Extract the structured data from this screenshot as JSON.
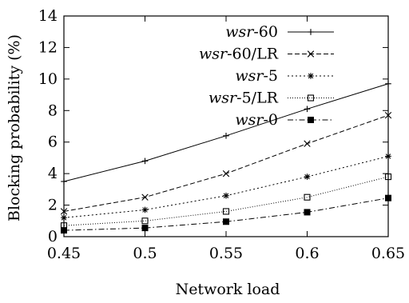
{
  "chart_data": {
    "type": "line",
    "title": "",
    "xlabel": "Network load",
    "ylabel": "Blocking probability (%)",
    "xlim": [
      0.45,
      0.65
    ],
    "ylim": [
      0,
      14
    ],
    "xticks": [
      0.45,
      0.5,
      0.55,
      0.6,
      0.65
    ],
    "xtick_labels": [
      "0.45",
      "0.5",
      "0.55",
      "0.6",
      "0.65"
    ],
    "yticks": [
      0,
      2,
      4,
      6,
      8,
      10,
      12,
      14
    ],
    "ytick_labels": [
      "0",
      "2",
      "4",
      "6",
      "8",
      "10",
      "12",
      "14"
    ],
    "grid": false,
    "legend_position": "top-right",
    "x": [
      0.45,
      0.5,
      0.55,
      0.6,
      0.65
    ],
    "series": [
      {
        "prefix": "wsr",
        "suffix": "-60",
        "marker": "plus",
        "dash": "",
        "values": [
          3.5,
          4.8,
          6.4,
          8.1,
          9.7
        ]
      },
      {
        "prefix": "wsr",
        "suffix": "-60/LR",
        "marker": "cross",
        "dash": "6,3",
        "values": [
          1.6,
          2.5,
          4.0,
          5.9,
          7.7
        ]
      },
      {
        "prefix": "wsr",
        "suffix": "-5",
        "marker": "star",
        "dash": "2,3",
        "values": [
          1.2,
          1.7,
          2.6,
          3.8,
          5.1
        ]
      },
      {
        "prefix": "wsr",
        "suffix": "-5/LR",
        "marker": "square-open",
        "dash": "1,2",
        "values": [
          0.7,
          1.0,
          1.6,
          2.5,
          3.8
        ]
      },
      {
        "prefix": "wsr",
        "suffix": "-0",
        "marker": "square-filled",
        "dash": "7,3,1.5,3",
        "values": [
          0.4,
          0.55,
          0.95,
          1.55,
          2.45
        ]
      }
    ]
  }
}
